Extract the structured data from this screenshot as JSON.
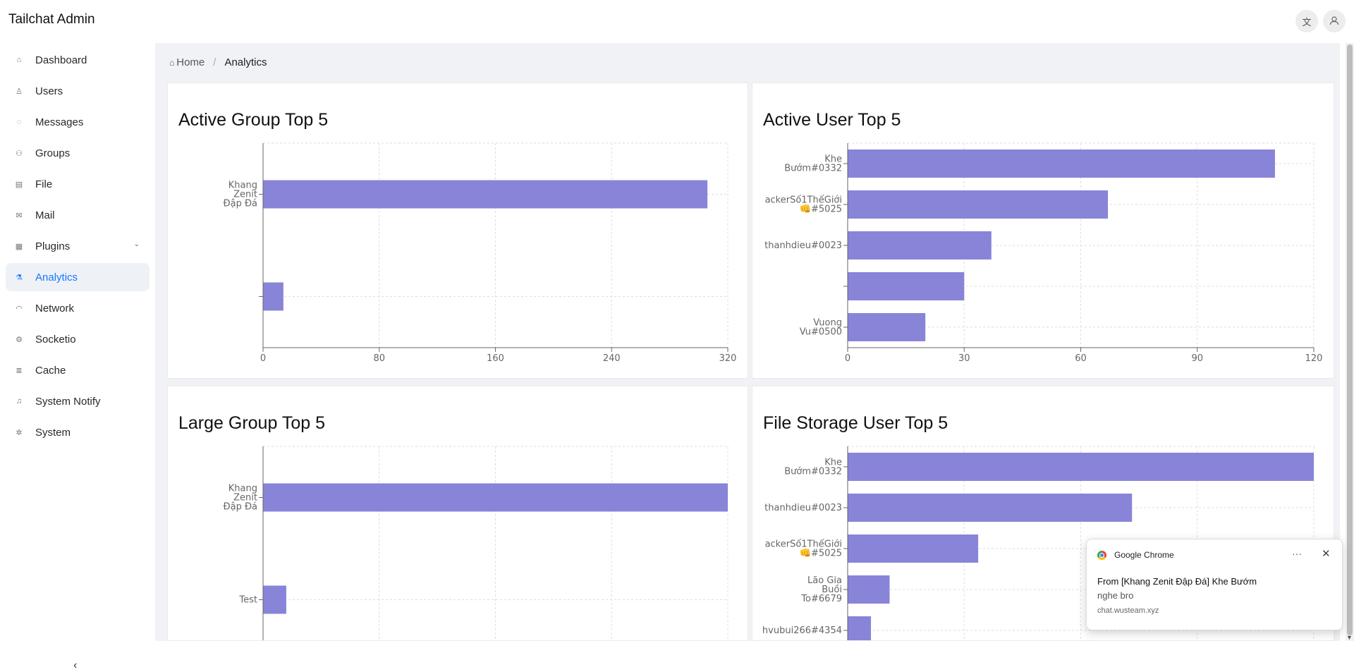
{
  "app": {
    "title": "Tailchat Admin"
  },
  "header": {
    "translate_icon": "translate-icon",
    "avatar_icon": "user-avatar-icon"
  },
  "sidebar": {
    "items": [
      {
        "label": "Dashboard",
        "icon": "home-icon",
        "active": false
      },
      {
        "label": "Users",
        "icon": "user-icon",
        "active": false
      },
      {
        "label": "Messages",
        "icon": "message-icon",
        "active": false
      },
      {
        "label": "Groups",
        "icon": "team-icon",
        "active": false
      },
      {
        "label": "File",
        "icon": "file-icon",
        "active": false
      },
      {
        "label": "Mail",
        "icon": "mail-icon",
        "active": false
      },
      {
        "label": "Plugins",
        "icon": "appstore-icon",
        "active": false,
        "has_submenu": true
      },
      {
        "label": "Analytics",
        "icon": "experiment-icon",
        "active": true
      },
      {
        "label": "Network",
        "icon": "wifi-icon",
        "active": false
      },
      {
        "label": "Socketio",
        "icon": "api-icon",
        "active": false
      },
      {
        "label": "Cache",
        "icon": "database-icon",
        "active": false
      },
      {
        "label": "System Notify",
        "icon": "bell-icon",
        "active": false
      },
      {
        "label": "System",
        "icon": "setting-icon",
        "active": false
      }
    ],
    "collapse_icon": "chevron-left-icon"
  },
  "breadcrumb": {
    "home": "Home",
    "current": "Analytics"
  },
  "colors": {
    "bar": "#8884d8",
    "accent": "#1677ff",
    "grid": "#dddddd"
  },
  "chart_data": [
    {
      "type": "bar",
      "orientation": "horizontal",
      "title": "Active Group Top 5",
      "categories": [
        [
          "Khang",
          "Zenit",
          "Đập Đá"
        ],
        [
          ""
        ]
      ],
      "values": [
        306,
        14
      ],
      "xlim": [
        0,
        320
      ],
      "xticks": [
        "0",
        "80",
        "160",
        "240",
        "320"
      ],
      "grid": true
    },
    {
      "type": "bar",
      "orientation": "horizontal",
      "title": "Active User Top 5",
      "categories": [
        [
          "Khe",
          "Bướm#0332"
        ],
        [
          "ackerSố1ThếGiới",
          "👊#5025"
        ],
        [
          "thanhdieu#0023"
        ],
        [
          ""
        ],
        [
          "Vuong",
          "Vu#0500"
        ]
      ],
      "values": [
        110,
        67,
        37,
        30,
        20
      ],
      "xlim": [
        0,
        120
      ],
      "xticks": [
        "0",
        "30",
        "60",
        "90",
        "120"
      ],
      "grid": true
    },
    {
      "type": "bar",
      "orientation": "horizontal",
      "title": "Large Group Top 5",
      "categories": [
        [
          "Khang",
          "Zenit",
          "Đập Đá"
        ],
        [
          "Test"
        ]
      ],
      "values": [
        100,
        5
      ],
      "grid": true
    },
    {
      "type": "bar",
      "orientation": "horizontal",
      "title": "File Storage User Top 5",
      "categories": [
        [
          "Khe",
          "Bướm#0332"
        ],
        [
          "thanhdieu#0023"
        ],
        [
          "ackerSố1ThếGiới",
          "👊#5025"
        ],
        [
          "Lão Gia",
          "Buồi",
          "To#6679"
        ],
        [
          "hvubui266#4354"
        ]
      ],
      "values": [
        100,
        61,
        28,
        9,
        5
      ],
      "grid": true
    }
  ],
  "notification": {
    "app": "Google Chrome",
    "more_icon": "more-icon",
    "close_icon": "close-icon",
    "title": "From [Khang Zenit Đập Đá] Khe Bướm",
    "body": "nghe bro",
    "source": "chat.wusteam.xyz"
  }
}
